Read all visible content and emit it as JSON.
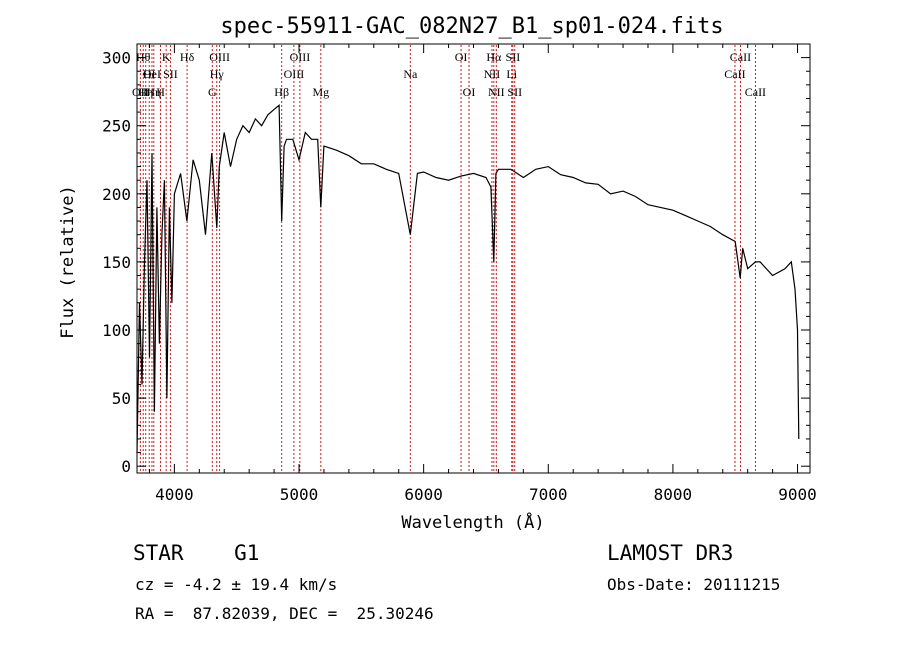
{
  "chart_data": {
    "type": "line",
    "title": "spec-55911-GAC_082N27_B1_sp01-024.fits",
    "xlabel": "Wavelength (Å)",
    "ylabel": "Flux (relative)",
    "xlim": [
      3700,
      9100
    ],
    "ylim": [
      -5,
      310
    ],
    "xticks": [
      4000,
      5000,
      6000,
      7000,
      8000,
      9000
    ],
    "xtick_labels": [
      "4000",
      "5000",
      "6000",
      "7000",
      "8000",
      "9000"
    ],
    "yticks": [
      0,
      50,
      100,
      150,
      200,
      250,
      300
    ],
    "ytick_labels": [
      "0",
      "50",
      "100",
      "150",
      "200",
      "250",
      "300"
    ],
    "grid": false,
    "series": [
      {
        "name": "flux",
        "x": [
          3700,
          3720,
          3740,
          3760,
          3780,
          3800,
          3820,
          3840,
          3860,
          3880,
          3900,
          3920,
          3940,
          3960,
          3980,
          4000,
          4050,
          4100,
          4150,
          4200,
          4250,
          4300,
          4340,
          4360,
          4400,
          4450,
          4500,
          4550,
          4600,
          4650,
          4700,
          4750,
          4800,
          4840,
          4861,
          4880,
          4900,
          4950,
          5000,
          5050,
          5100,
          5150,
          5175,
          5200,
          5300,
          5400,
          5500,
          5600,
          5700,
          5800,
          5893,
          5950,
          6000,
          6100,
          6200,
          6300,
          6400,
          6500,
          6540,
          6563,
          6580,
          6600,
          6700,
          6800,
          6900,
          7000,
          7100,
          7200,
          7300,
          7400,
          7500,
          7600,
          7700,
          7800,
          7900,
          8000,
          8100,
          8200,
          8300,
          8400,
          8500,
          8540,
          8560,
          8600,
          8662,
          8700,
          8800,
          8900,
          8950,
          8980,
          9000,
          9010
        ],
        "values": [
          10,
          120,
          60,
          150,
          210,
          80,
          230,
          40,
          190,
          90,
          170,
          210,
          50,
          190,
          120,
          200,
          215,
          180,
          225,
          210,
          170,
          230,
          175,
          220,
          245,
          220,
          240,
          250,
          245,
          255,
          250,
          258,
          262,
          265,
          180,
          235,
          240,
          240,
          225,
          245,
          240,
          240,
          190,
          235,
          232,
          228,
          222,
          222,
          218,
          215,
          170,
          215,
          216,
          212,
          210,
          213,
          215,
          212,
          205,
          150,
          215,
          218,
          218,
          212,
          218,
          220,
          214,
          212,
          208,
          207,
          200,
          202,
          198,
          192,
          190,
          188,
          184,
          180,
          176,
          170,
          165,
          138,
          160,
          145,
          150,
          150,
          140,
          145,
          150,
          130,
          100,
          20
        ]
      }
    ],
    "lines": [
      {
        "wl": 3727,
        "label": "OII",
        "row": 3
      },
      {
        "wl": 3750,
        "label": "Hθ",
        "row": 1
      },
      {
        "wl": 3770,
        "label": "Hη",
        "row": 3
      },
      {
        "wl": 3798,
        "label": "OI",
        "row": 2
      },
      {
        "wl": 3820,
        "label": "HeI",
        "row": 2
      },
      {
        "wl": 3835,
        "label": "Hη",
        "row": 3
      },
      {
        "wl": 3889,
        "label": "H",
        "row": 3
      },
      {
        "wl": 3934,
        "label": "K",
        "row": 1
      },
      {
        "wl": 3968,
        "label": "SII",
        "row": 2
      },
      {
        "wl": 4102,
        "label": "Hδ",
        "row": 1
      },
      {
        "wl": 4304,
        "label": "G",
        "row": 3
      },
      {
        "wl": 4340,
        "label": "Hγ",
        "row": 2
      },
      {
        "wl": 4363,
        "label": "OIII",
        "row": 1
      },
      {
        "wl": 4861,
        "label": "Hβ",
        "row": 3
      },
      {
        "wl": 4959,
        "label": "OIII",
        "row": 2
      },
      {
        "wl": 5007,
        "label": "OIII",
        "row": 1
      },
      {
        "wl": 5175,
        "label": "Mg",
        "row": 3
      },
      {
        "wl": 5893,
        "label": "Na",
        "row": 2
      },
      {
        "wl": 6300,
        "label": "OI",
        "row": 1
      },
      {
        "wl": 6364,
        "label": "OI",
        "row": 3
      },
      {
        "wl": 6548,
        "label": "NII",
        "row": 2
      },
      {
        "wl": 6563,
        "label": "Hα",
        "row": 1
      },
      {
        "wl": 6583,
        "label": "NII",
        "row": 3
      },
      {
        "wl": 6707,
        "label": "Li",
        "row": 2
      },
      {
        "wl": 6716,
        "label": "SII",
        "row": 1
      },
      {
        "wl": 6731,
        "label": "SII",
        "row": 3
      },
      {
        "wl": 8498,
        "label": "CaII",
        "row": 2
      },
      {
        "wl": 8542,
        "label": "CaII",
        "row": 1
      },
      {
        "wl": 8662,
        "label": "CaII",
        "row": 3
      }
    ]
  },
  "info": {
    "class": "STAR    G1",
    "survey": "LAMOST DR3",
    "redshift": "cz = -4.2 ± 19.4 km/s",
    "obs_date": "Obs-Date: 20111215",
    "coords": "RA =  87.82039, DEC =  25.30246"
  },
  "colors": {
    "line": "#cc0000",
    "spectrum": "#000000"
  }
}
